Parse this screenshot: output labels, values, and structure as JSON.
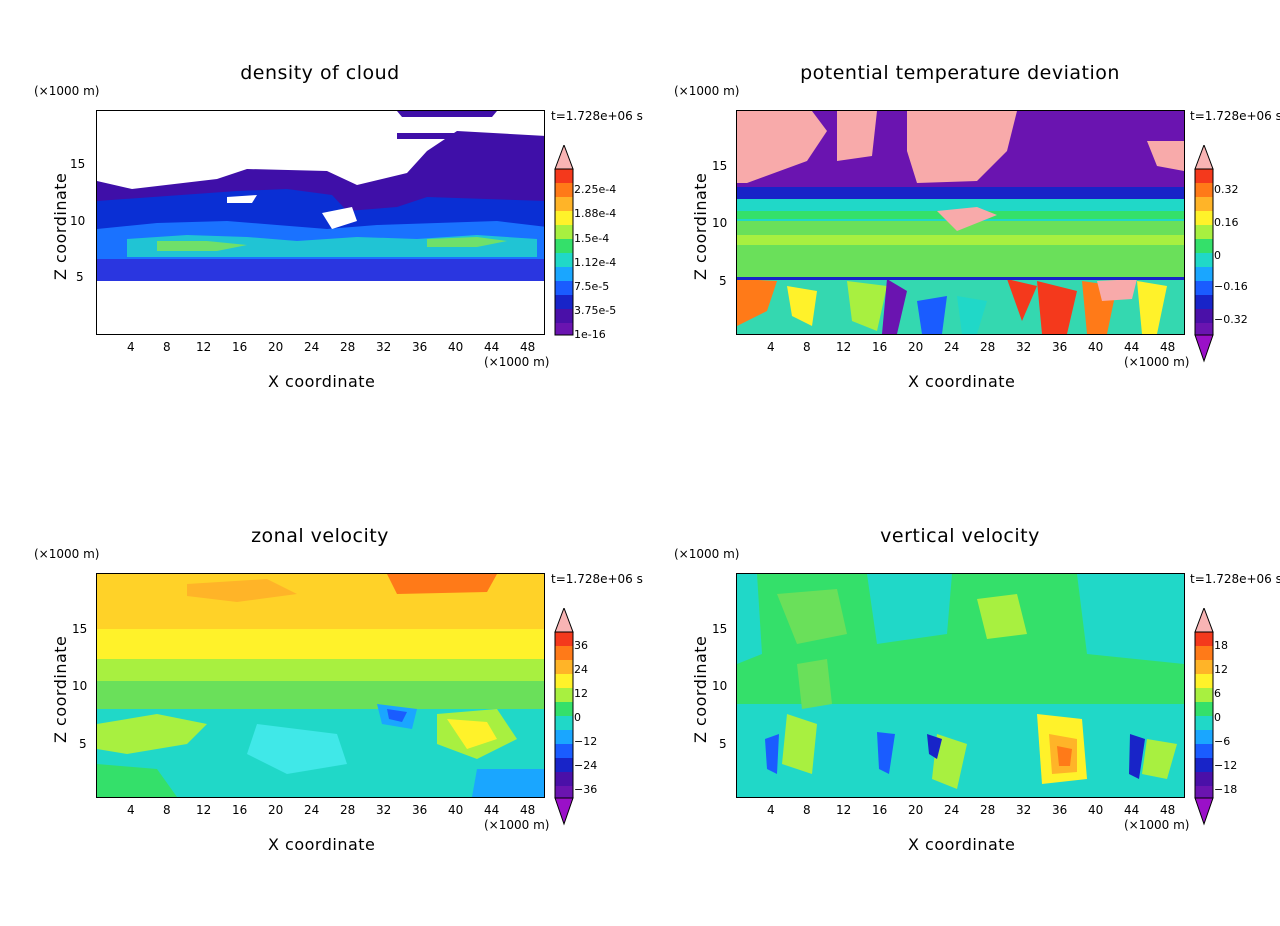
{
  "time_label": "t=1.728e+06 s",
  "chart_data": [
    {
      "type": "heatmap",
      "title": "density of cloud",
      "xlabel": "X coordinate",
      "ylabel": "Z coordinate",
      "x_unit": "(×1000 m)",
      "y_unit": "(×1000 m)",
      "x_ticks": [
        "4",
        "8",
        "12",
        "16",
        "20",
        "24",
        "28",
        "32",
        "36",
        "40",
        "44",
        "48"
      ],
      "y_ticks": [
        "5",
        "10",
        "15"
      ],
      "xlim": [
        0,
        50
      ],
      "ylim": [
        0,
        19.5
      ],
      "colorbar": [
        "2.25e-4",
        "1.88e-4",
        "1.5e-4",
        "1.12e-4",
        "7.5e-5",
        "3.75e-5",
        "1e-16"
      ],
      "colorbar_arrows": "top"
    },
    {
      "type": "heatmap",
      "title": "potential temperature deviation",
      "xlabel": "X coordinate",
      "ylabel": "Z coordinate",
      "x_unit": "(×1000 m)",
      "y_unit": "(×1000 m)",
      "x_ticks": [
        "4",
        "8",
        "12",
        "16",
        "20",
        "24",
        "28",
        "32",
        "36",
        "40",
        "44",
        "48"
      ],
      "y_ticks": [
        "5",
        "10",
        "15"
      ],
      "xlim": [
        0,
        50
      ],
      "ylim": [
        0,
        19.5
      ],
      "colorbar": [
        "0.32",
        "0.16",
        "0",
        "−0.16",
        "−0.32"
      ],
      "colorbar_arrows": "both"
    },
    {
      "type": "heatmap",
      "title": "zonal velocity",
      "xlabel": "X coordinate",
      "ylabel": "Z coordinate",
      "x_unit": "(×1000 m)",
      "y_unit": "(×1000 m)",
      "x_ticks": [
        "4",
        "8",
        "12",
        "16",
        "20",
        "24",
        "28",
        "32",
        "36",
        "40",
        "44",
        "48"
      ],
      "y_ticks": [
        "5",
        "10",
        "15"
      ],
      "xlim": [
        0,
        50
      ],
      "ylim": [
        0,
        19.5
      ],
      "colorbar": [
        "36",
        "24",
        "12",
        "0",
        "−12",
        "−24",
        "−36"
      ],
      "colorbar_arrows": "both"
    },
    {
      "type": "heatmap",
      "title": "vertical velocity",
      "xlabel": "X coordinate",
      "ylabel": "Z coordinate",
      "x_unit": "(×1000 m)",
      "y_unit": "(×1000 m)",
      "x_ticks": [
        "4",
        "8",
        "12",
        "16",
        "20",
        "24",
        "28",
        "32",
        "36",
        "40",
        "44",
        "48"
      ],
      "y_ticks": [
        "5",
        "10",
        "15"
      ],
      "xlim": [
        0,
        50
      ],
      "ylim": [
        0,
        19.5
      ],
      "colorbar": [
        "18",
        "12",
        "6",
        "0",
        "−6",
        "−12",
        "−18"
      ],
      "colorbar_arrows": "both"
    }
  ]
}
